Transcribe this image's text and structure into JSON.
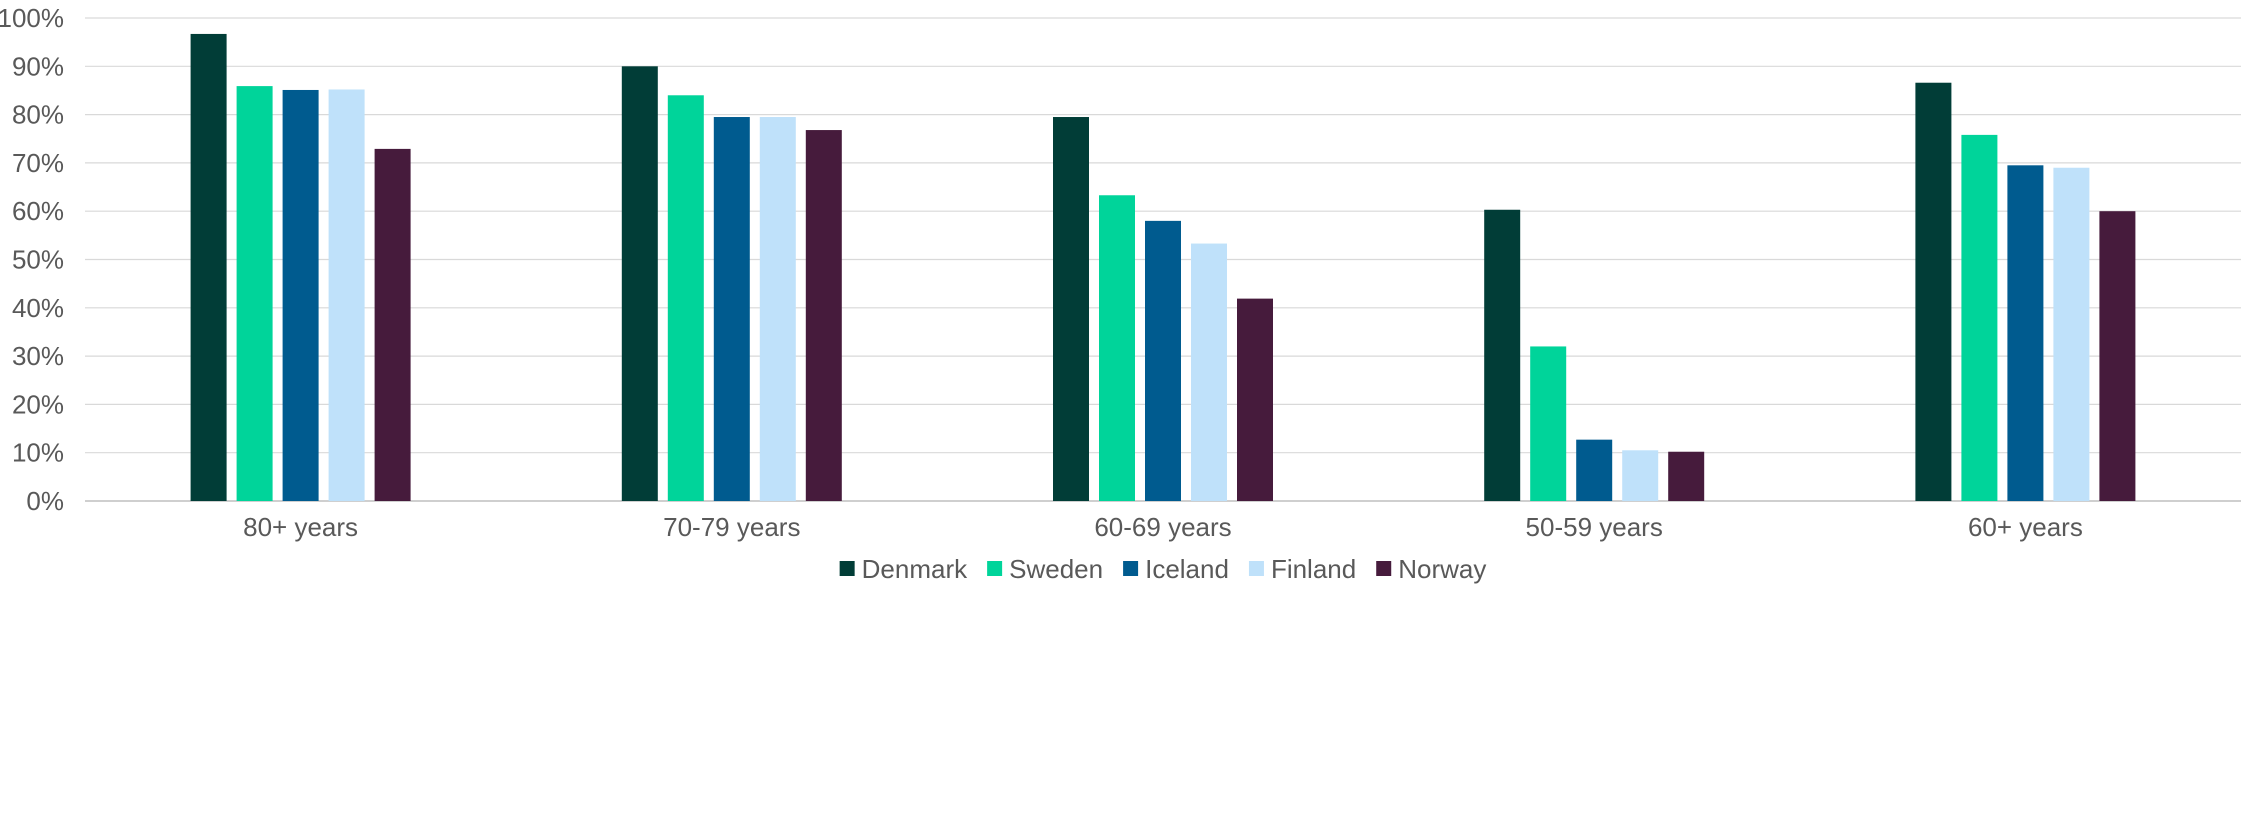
{
  "chart_data": {
    "type": "bar",
    "categories": [
      "80+ years",
      "70-79 years",
      "60-69 years",
      "50-59 years",
      "60+ years"
    ],
    "series": [
      {
        "name": "Denmark",
        "color": "#013D37",
        "values": [
          96.7,
          90.0,
          79.5,
          60.3,
          86.6
        ]
      },
      {
        "name": "Sweden",
        "color": "#00D49A",
        "values": [
          85.9,
          84.0,
          63.3,
          32.0,
          75.8
        ]
      },
      {
        "name": "Iceland",
        "color": "#005B8F",
        "values": [
          85.1,
          79.5,
          58.0,
          12.7,
          69.5
        ]
      },
      {
        "name": "Finland",
        "color": "#BFE1FA",
        "values": [
          85.2,
          79.5,
          53.3,
          10.5,
          69.0
        ]
      },
      {
        "name": "Norway",
        "color": "#461B3C",
        "values": [
          72.9,
          76.8,
          41.9,
          10.2,
          60.0
        ]
      }
    ],
    "ylim": [
      0,
      100
    ],
    "yticks": [
      "0%",
      "10%",
      "20%",
      "30%",
      "40%",
      "50%",
      "60%",
      "70%",
      "80%",
      "90%",
      "100%"
    ],
    "grid": true,
    "legend_position": "bottom-center"
  }
}
